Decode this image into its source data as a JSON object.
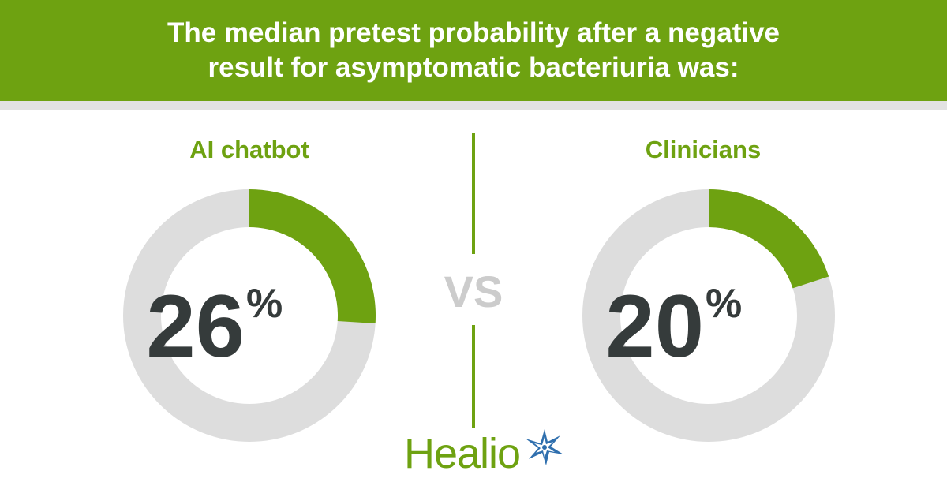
{
  "header": {
    "title": "The median pretest probability after a negative result for asymptomatic bacteriuria was:"
  },
  "comparison": {
    "separator": "VS"
  },
  "chart_data": [
    {
      "type": "pie",
      "variant": "donut",
      "title": "AI chatbot",
      "values": [
        26,
        74
      ],
      "categories": [
        "",
        ""
      ],
      "value_label": "26",
      "unit": "%",
      "colors": [
        "#6ea211",
        "#dddddd"
      ]
    },
    {
      "type": "pie",
      "variant": "donut",
      "title": "Clinicians",
      "values": [
        20,
        80
      ],
      "categories": [
        "",
        ""
      ],
      "value_label": "20",
      "unit": "%",
      "colors": [
        "#6ea211",
        "#dddddd"
      ]
    }
  ],
  "logo": {
    "text": "Healio",
    "icon": "star-icon"
  },
  "colors": {
    "accent": "#6ea211",
    "track": "#dddddd",
    "number": "#353b3b",
    "vs": "#cccccc"
  }
}
